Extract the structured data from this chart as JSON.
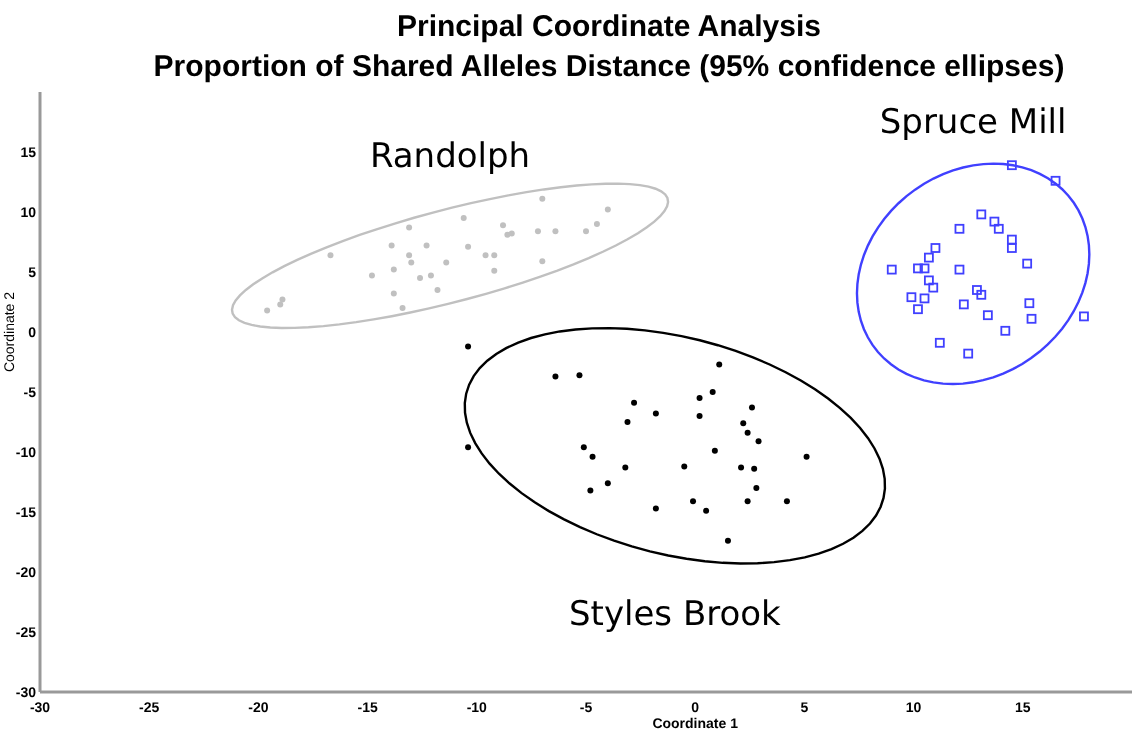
{
  "chart_data": {
    "type": "scatter",
    "title": "Principal Coordinate Analysis",
    "subtitle": "Proportion of Shared Alleles Distance (95% confidence ellipses)",
    "xlabel": "Coordinate 1",
    "ylabel": "Coordinate 2",
    "xlim": [
      -30,
      20
    ],
    "xticks": [
      -30,
      -25,
      -20,
      -15,
      -10,
      -5,
      0,
      5,
      10,
      15
    ],
    "ylim": [
      -30,
      20
    ],
    "yticks": [
      -30,
      -25,
      -20,
      -15,
      -10,
      -5,
      0,
      5,
      10,
      15
    ],
    "grid": false,
    "legend": false,
    "series": [
      {
        "name": "Randolph",
        "color": "#c0c0c0",
        "marker": "circle",
        "x": [
          -19.6,
          -19.0,
          -18.9,
          -16.7,
          -14.8,
          -13.9,
          -13.8,
          -13.8,
          -13.4,
          -13.1,
          -13.1,
          -13.0,
          -12.6,
          -12.3,
          -12.1,
          -11.8,
          -11.4,
          -10.6,
          -10.4,
          -9.6,
          -9.2,
          -9.2,
          -8.8,
          -8.6,
          -8.4,
          -7.2,
          -7.0,
          -7.0,
          -6.4,
          -5.0,
          -4.5,
          -4.0
        ],
        "values": [
          1.8,
          2.3,
          2.7,
          6.4,
          4.7,
          7.2,
          5.2,
          3.2,
          2.0,
          8.7,
          6.4,
          5.8,
          4.5,
          7.2,
          4.7,
          3.5,
          5.8,
          9.5,
          7.1,
          6.4,
          6.4,
          5.1,
          8.9,
          8.1,
          8.2,
          8.4,
          11.1,
          5.9,
          8.4,
          8.4,
          9.0,
          10.2
        ]
      },
      {
        "name": "Spruce Mill",
        "color": "#4040ff",
        "marker": "square",
        "x": [
          9.0,
          9.9,
          10.2,
          10.2,
          10.5,
          10.5,
          10.7,
          10.7,
          10.9,
          11.0,
          11.2,
          12.1,
          12.1,
          12.3,
          12.5,
          12.9,
          13.1,
          13.1,
          13.4,
          13.7,
          13.9,
          14.2,
          14.5,
          14.5,
          14.5,
          15.2,
          15.3,
          15.4,
          16.5,
          17.8
        ],
        "values": [
          5.2,
          2.9,
          1.9,
          5.3,
          2.8,
          5.3,
          6.2,
          4.3,
          3.7,
          7.0,
          -0.9,
          8.6,
          5.2,
          2.3,
          -1.8,
          3.5,
          3.1,
          9.8,
          1.4,
          9.2,
          8.6,
          0.1,
          13.9,
          7.7,
          7.0,
          5.7,
          2.4,
          1.1,
          12.6,
          1.3
        ]
      },
      {
        "name": "Styles Brook",
        "color": "#000000",
        "marker": "circle",
        "x": [
          -10.4,
          -10.4,
          -6.4,
          -5.3,
          -5.1,
          -4.8,
          -4.7,
          -4.0,
          -3.2,
          -3.1,
          -2.8,
          -1.8,
          -1.8,
          -0.5,
          -0.1,
          0.2,
          0.2,
          0.5,
          0.8,
          0.9,
          1.1,
          1.5,
          2.1,
          2.2,
          2.4,
          2.4,
          2.6,
          2.7,
          2.8,
          2.9,
          4.2,
          5.1
        ],
        "values": [
          -1.2,
          -9.6,
          -3.7,
          -3.6,
          -9.6,
          -13.2,
          -10.4,
          -12.6,
          -11.3,
          -7.5,
          -5.9,
          -6.8,
          -14.7,
          -11.2,
          -14.1,
          -7.0,
          -5.5,
          -14.9,
          -5.0,
          -9.9,
          -2.7,
          -17.4,
          -11.3,
          -7.6,
          -8.4,
          -14.1,
          -6.3,
          -11.4,
          -13.0,
          -9.1,
          -14.1,
          -10.4
        ]
      }
    ]
  }
}
